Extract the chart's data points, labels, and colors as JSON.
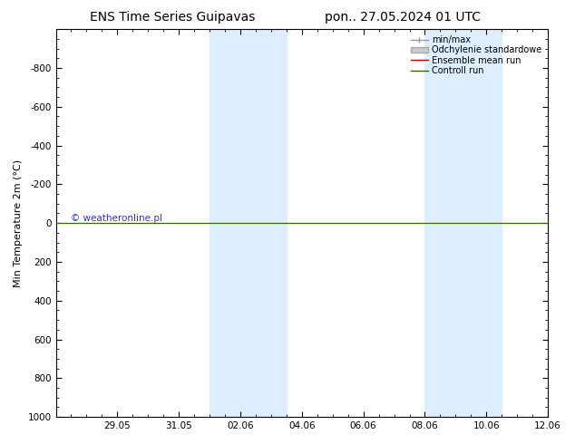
{
  "title_left": "ENS Time Series Guipavas",
  "title_right": "pon.. 27.05.2024 01 UTC",
  "ylabel": "Min Temperature 2m (°C)",
  "ylim_bottom": 1000,
  "ylim_top": -1000,
  "yticks": [
    -800,
    -600,
    -400,
    -200,
    0,
    200,
    400,
    600,
    800,
    1000
  ],
  "xtick_labels": [
    "29.05",
    "31.05",
    "02.06",
    "04.06",
    "06.06",
    "08.06",
    "10.06",
    "12.06"
  ],
  "xtick_days": [
    2,
    4,
    6,
    8,
    10,
    12,
    14,
    16
  ],
  "x_total_days": 16,
  "shaded_ranges_days": [
    [
      5.0,
      6.5
    ],
    [
      6.5,
      7.5
    ],
    [
      12.0,
      13.5
    ],
    [
      13.5,
      14.5
    ]
  ],
  "shaded_color": "#ddeeff",
  "line_y_value": 0,
  "green_line_color": "#336600",
  "red_line_color": "#cc0000",
  "gray_line_color": "#999999",
  "copyright_text": "© weatheronline.pl",
  "copyright_color": "#3333cc",
  "background_color": "#ffffff",
  "border_color": "#000000",
  "title_fontsize": 10,
  "axis_label_fontsize": 8,
  "tick_fontsize": 7.5,
  "legend_fontsize": 7,
  "copyright_fontsize": 7.5
}
